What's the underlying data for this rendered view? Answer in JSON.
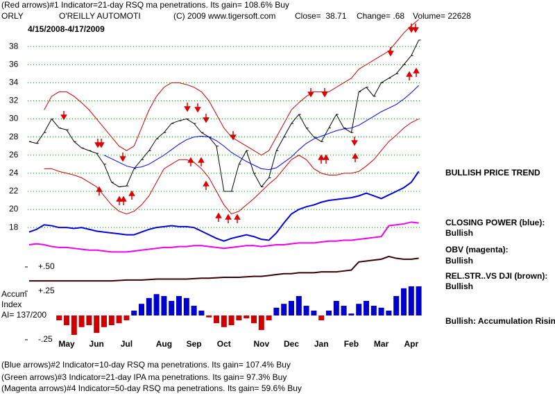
{
  "chart_data": [
    {
      "type": "line",
      "title": "(Red arrows)#1 Indicator=21-day RSQ ma penetrations. Its gain= 108.6% Buy",
      "symbol": "ORLY",
      "company": "O'REILLY AUTOMOTI",
      "copyright": "(C) 2009 www.tigersoft.com",
      "close": "Close=  38.71",
      "change": "Change= .68",
      "volume": "Volume= 22628",
      "date_range": "4/15/2008-4/17/2009",
      "labels": [
        "BULLISH PRICE TREND",
        "CLOSING POWER (blue):",
        "Bullish",
        "OBV (magenta):",
        "Bullish",
        "REL.STR..VS DJI (brown):",
        "Bullish",
        "Bullish: Accumulation Rising"
      ],
      "footnotes": [
        "(Blue arrows)#2 Indicator=10-day RSQ ma penetrations. Its gain= 107.4% Buy",
        "(Green arrows)#3 Indicator=21-day IPA ma penetrations. Its gain= 97.3% Buy",
        "(Magenta arrows)#4 Indicator=50-day RSQ ma penetrations. Its gain= 59.6% Buy"
      ],
      "categories": [
        null,
        null,
        null,
        null,
        null,
        "May",
        null,
        null,
        null,
        "Jun",
        null,
        null,
        null,
        "Jul",
        null,
        null,
        null,
        null,
        "Aug",
        null,
        null,
        null,
        "Sep",
        null,
        null,
        null,
        "Oct",
        null,
        null,
        null,
        null,
        "Nov",
        null,
        null,
        null,
        "Dec",
        null,
        null,
        null,
        "Jan",
        null,
        null,
        null,
        "Feb",
        null,
        null,
        null,
        "Mar",
        null,
        null,
        null,
        "Apr",
        null
      ],
      "series": [
        {
          "name": "Close",
          "color": "#000000",
          "values": [
            27.5,
            27.3,
            28.5,
            30,
            29,
            28.8,
            27.5,
            26.8,
            26.5,
            26.2,
            25,
            23,
            22.5,
            22.6,
            24.5,
            25.5,
            26.5,
            27.8,
            28.5,
            29.5,
            29.8,
            30,
            29.5,
            28.5,
            28,
            27,
            22,
            22,
            25,
            26.5,
            24,
            22.5,
            23.5,
            26.5,
            28,
            29.5,
            30.5,
            29,
            28,
            27.5,
            29,
            30.5,
            29,
            28.5,
            33,
            33.5,
            32.5,
            34,
            34.5,
            35,
            36,
            37,
            38.71
          ]
        },
        {
          "name": "Moving average",
          "color": "#0000ff",
          "values": [
            null,
            null,
            null,
            null,
            null,
            null,
            null,
            null,
            null,
            null,
            26,
            25.6,
            25.2,
            24.8,
            24.6,
            24.7,
            25,
            25.5,
            26,
            26.6,
            27.2,
            27.7,
            28,
            28.1,
            28,
            27.6,
            27,
            26.3,
            25.8,
            25.3,
            24.9,
            24.5,
            24.4,
            24.6,
            25.2,
            25.8,
            26.6,
            27.3,
            27.8,
            28.1,
            28.4,
            28.7,
            28.9,
            29,
            29.3,
            29.8,
            30.3,
            30.8,
            31.2,
            31.6,
            32.2,
            32.9,
            33.7
          ]
        },
        {
          "name": "Upper band",
          "color": "#cc0000",
          "values": [
            null,
            null,
            31,
            32.5,
            33,
            33,
            32.5,
            31.8,
            31,
            30,
            29,
            28,
            27,
            26.5,
            27,
            29,
            31,
            32.5,
            33.5,
            34,
            34,
            33.8,
            33.5,
            33,
            32,
            30.5,
            29,
            28,
            27.5,
            27,
            26.5,
            26,
            26.5,
            28,
            29.5,
            31,
            31.8,
            32.5,
            33,
            33,
            33,
            33.5,
            34,
            34.5,
            35.5,
            36,
            36.5,
            37,
            37.5,
            38.5,
            39.5,
            40.3,
            41
          ]
        },
        {
          "name": "Lower band",
          "color": "#cc0000",
          "values": [
            null,
            null,
            24.5,
            24.5,
            24.2,
            24,
            23.8,
            23.5,
            23,
            22.5,
            21.5,
            20.5,
            19.8,
            19.5,
            19.8,
            20.5,
            21.5,
            23,
            24.5,
            25,
            25.5,
            25.5,
            25.2,
            24.5,
            23.5,
            22,
            20.5,
            19.5,
            19.8,
            20.5,
            21.2,
            22,
            22.8,
            23.5,
            24.5,
            25.5,
            26,
            25.5,
            24.5,
            24,
            23.8,
            23.8,
            24,
            24,
            24.2,
            24.8,
            25.5,
            26.5,
            27.5,
            28.2,
            29,
            29.6,
            30
          ]
        },
        {
          "name": "CLOSING POWER",
          "color": "#0000dd",
          "values": [
            17.5,
            17.8,
            18.3,
            18.2,
            18,
            18,
            17.9,
            18,
            17.8,
            17.6,
            17.5,
            17.4,
            17.3,
            17.2,
            17.2,
            17.5,
            17.8,
            18,
            18.1,
            18.2,
            18.1,
            18.1,
            18,
            17.6,
            17.2,
            16.8,
            16.5,
            16.8,
            17,
            17.2,
            17,
            16.7,
            16.6,
            17.4,
            18.5,
            19.5,
            20,
            20.3,
            20.5,
            20.8,
            21,
            21.1,
            21.2,
            21.3,
            21.5,
            21.8,
            21.5,
            21.2,
            21.6,
            22,
            22.4,
            23,
            24.2
          ]
        },
        {
          "name": "OBV",
          "color": "#ee00ee",
          "values": [
            16.1,
            16.2,
            16.1,
            15.9,
            15.8,
            15.8,
            15.7,
            15.6,
            15.5,
            15.5,
            15.4,
            15.3,
            15.3,
            15.3,
            15.4,
            15.5,
            15.6,
            15.7,
            15.8,
            15.8,
            15.9,
            15.9,
            16,
            16,
            15.9,
            15.8,
            15.7,
            15.8,
            15.9,
            16,
            16,
            15.9,
            16,
            16.1,
            16.1,
            16.2,
            16.3,
            16.3,
            16.3,
            16.4,
            16.5,
            16.5,
            16.6,
            16.6,
            16.7,
            16.8,
            16.9,
            17,
            18.2,
            18.3,
            18.4,
            18.6,
            18.5
          ]
        },
        {
          "name": "REL.STR..VS DJI",
          "color": "#3a0000",
          "values": [
            12.1,
            12.1,
            12.1,
            12.1,
            12.1,
            12.1,
            12.1,
            12.1,
            12.1,
            12.1,
            12.1,
            12.1,
            12.15,
            12.2,
            12.2,
            12.2,
            12.25,
            12.3,
            12.3,
            12.3,
            12.3,
            12.3,
            12.35,
            12.4,
            12.4,
            12.45,
            12.5,
            12.5,
            12.5,
            12.55,
            12.6,
            12.6,
            12.7,
            12.8,
            12.9,
            12.9,
            13,
            13,
            13,
            13.1,
            13.1,
            13.1,
            13.2,
            13.3,
            14.2,
            14.3,
            14.4,
            14.5,
            14.8,
            14.6,
            14.5,
            14.5,
            14.6
          ]
        }
      ],
      "ylim": [
        11.5,
        41
      ],
      "yticks": [
        18,
        20,
        22,
        24,
        26,
        28,
        30,
        32,
        34,
        36,
        38
      ],
      "grid": true,
      "grid_color": "#008000"
    },
    {
      "type": "bar",
      "label": [
        "Accum",
        "Index",
        "AI= 137/200"
      ],
      "values": [
        null,
        null,
        null,
        null,
        -0.05,
        -0.1,
        -0.2,
        -0.12,
        -0.1,
        -0.18,
        -0.12,
        -0.1,
        -0.08,
        -0.05,
        0.05,
        0.12,
        0.18,
        0.22,
        0.2,
        0.15,
        0.2,
        0.18,
        0.1,
        0.05,
        -0.02,
        -0.08,
        -0.12,
        -0.1,
        -0.05,
        -0.03,
        -0.08,
        -0.15,
        -0.05,
        0.08,
        0.12,
        0.15,
        0.2,
        0.1,
        0.05,
        -0.05,
        0.05,
        0.15,
        0.1,
        0.02,
        0.12,
        0.15,
        0.1,
        0.08,
        0.05,
        0.2,
        0.28,
        0.3,
        0.3
      ],
      "positive_color": "#0000cc",
      "negative_color": "#cc0000",
      "ylim": [
        -0.3,
        0.55
      ],
      "yticks": [
        {
          "value": 0.5,
          "label": "+.50"
        },
        {
          "value": 0.25,
          "label": "+.25"
        },
        {
          "value": -0.25,
          "label": "-.25"
        }
      ]
    }
  ]
}
